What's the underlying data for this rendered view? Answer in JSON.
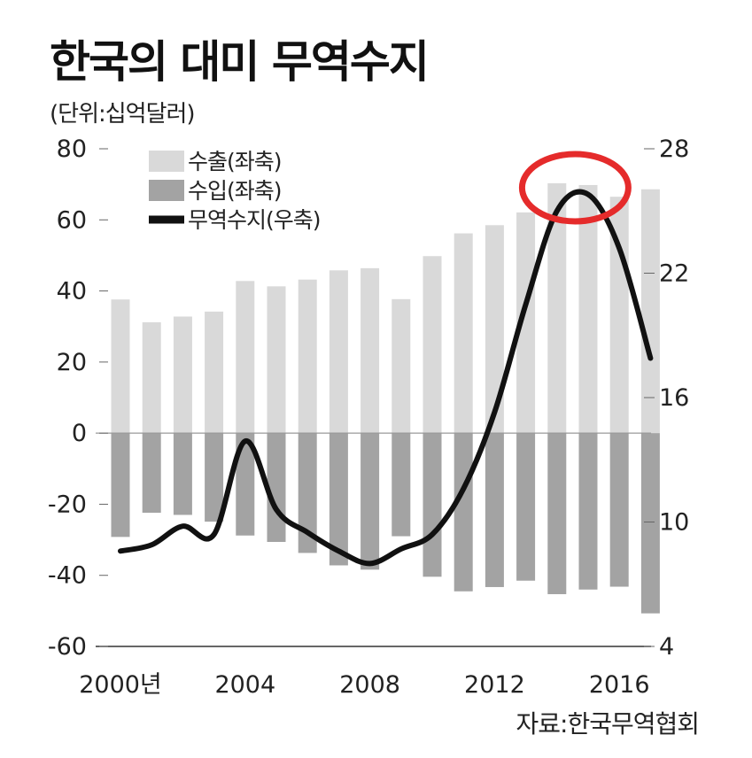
{
  "title": "한국의 대미 무역수지",
  "unit": "(단위:십억달러)",
  "source": "자료:한국무역협회",
  "colors": {
    "export": "#d9d9d9",
    "import": "#a3a3a3",
    "balance": "#111111",
    "highlight": "#e52b2b"
  },
  "chart_data": {
    "type": "bar",
    "x": [
      2000,
      2001,
      2002,
      2003,
      2004,
      2005,
      2006,
      2007,
      2008,
      2009,
      2010,
      2011,
      2012,
      2013,
      2014,
      2015,
      2016,
      2017
    ],
    "series": [
      {
        "name": "수출(좌축)",
        "axis": "left",
        "type": "bar",
        "values": [
          37.6,
          31.2,
          32.8,
          34.2,
          42.8,
          41.3,
          43.2,
          45.8,
          46.4,
          37.7,
          49.8,
          56.2,
          58.5,
          62.1,
          70.3,
          69.8,
          66.5,
          68.6
        ]
      },
      {
        "name": "수입(좌축)",
        "axis": "left",
        "type": "bar",
        "values": [
          -29.2,
          -22.4,
          -23.0,
          -24.9,
          -28.8,
          -30.6,
          -33.7,
          -37.2,
          -38.4,
          -29.0,
          -40.4,
          -44.5,
          -43.3,
          -41.5,
          -45.3,
          -44.0,
          -43.2,
          -50.7
        ]
      },
      {
        "name": "무역수지(우축)",
        "axis": "right",
        "type": "line",
        "values": [
          8.6,
          8.9,
          9.8,
          9.4,
          13.9,
          10.6,
          9.5,
          8.6,
          8.0,
          8.7,
          9.4,
          11.6,
          15.3,
          20.5,
          25.0,
          25.8,
          23.2,
          17.9
        ]
      }
    ],
    "x_tick_labels": [
      "2000년",
      "2004",
      "2008",
      "2012",
      "2016"
    ],
    "x_tick_years": [
      2000,
      2004,
      2008,
      2012,
      2016
    ],
    "left_axis": {
      "ticks": [
        80,
        60,
        40,
        20,
        0,
        -20,
        -40,
        -60
      ],
      "range": [
        -60,
        80
      ]
    },
    "right_axis": {
      "ticks": [
        28,
        22,
        16,
        10,
        4
      ],
      "range": [
        4,
        28
      ]
    },
    "highlight_years": [
      2014,
      2015
    ],
    "legend_position": "top-left",
    "grid": false
  }
}
